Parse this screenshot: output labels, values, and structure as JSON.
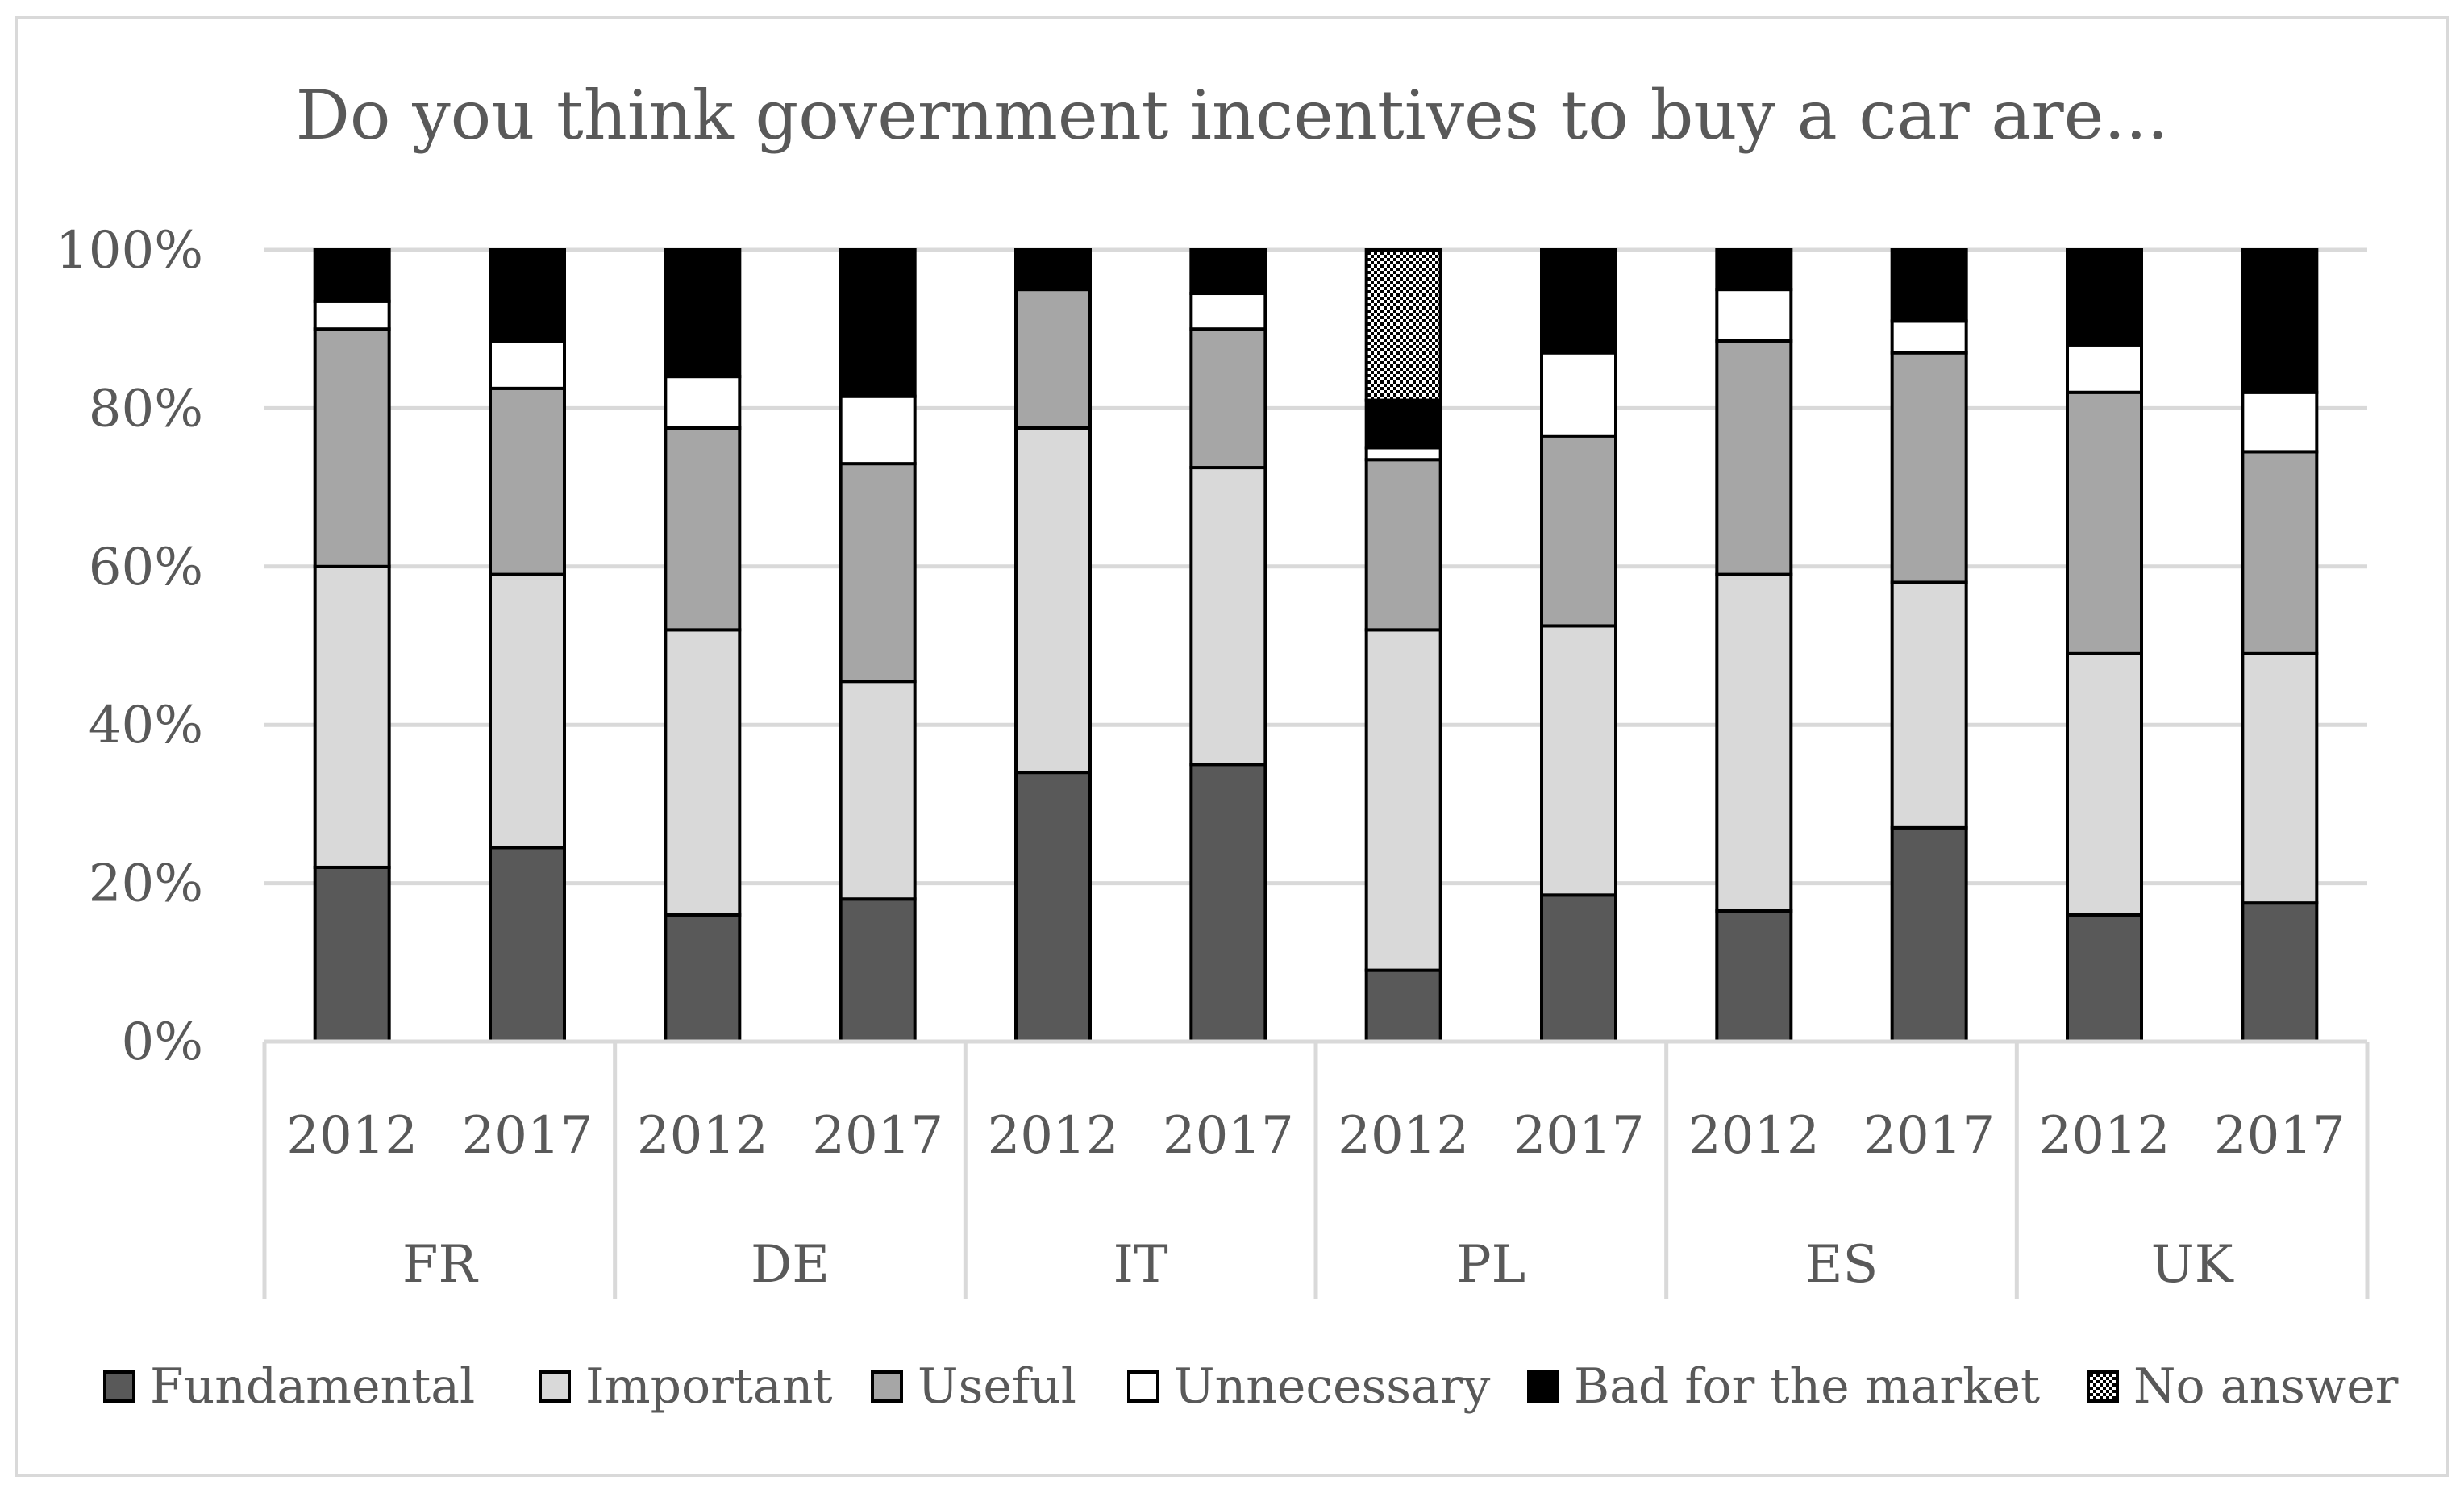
{
  "chart_data": {
    "type": "bar",
    "stacked": true,
    "percent": true,
    "title": "Do you think government incentives to buy a car are...",
    "xlabel": "",
    "ylabel": "",
    "ylim": [
      0,
      100
    ],
    "yticks": [
      "0%",
      "20%",
      "40%",
      "60%",
      "80%",
      "100%"
    ],
    "grid": true,
    "legend_position": "bottom",
    "groups": [
      "FR",
      "DE",
      "IT",
      "PL",
      "ES",
      "UK"
    ],
    "years": [
      "2012",
      "2017"
    ],
    "categories": [
      "FR 2012",
      "FR 2017",
      "DE 2012",
      "DE 2017",
      "IT 2012",
      "IT 2017",
      "PL 2012",
      "PL 2017",
      "ES 2012",
      "ES 2017",
      "UK 2012",
      "UK 2017"
    ],
    "series": [
      {
        "name": "Fundamental",
        "color": "#595959",
        "pattern": "solid",
        "values": [
          22,
          24.5,
          16,
          18,
          34,
          35,
          9,
          18.5,
          16.5,
          27,
          16,
          17.5
        ]
      },
      {
        "name": "Important",
        "color": "#d9d9d9",
        "pattern": "solid",
        "values": [
          38,
          34.5,
          36,
          27.5,
          43.5,
          37.5,
          43,
          34,
          42.5,
          31,
          33,
          31.5
        ]
      },
      {
        "name": "Useful",
        "color": "#a6a6a6",
        "pattern": "solid",
        "values": [
          30,
          23.5,
          25.5,
          27.5,
          17.5,
          17.5,
          21.5,
          24,
          29.5,
          29,
          33,
          25.5
        ]
      },
      {
        "name": "Unnecessary",
        "color": "#ffffff",
        "pattern": "solid",
        "values": [
          3.5,
          6,
          6.5,
          8.5,
          0,
          4.5,
          1.5,
          10.5,
          6.5,
          4,
          6,
          7.5
        ]
      },
      {
        "name": "Bad for the market",
        "color": "#000000",
        "pattern": "solid",
        "values": [
          6.5,
          11.5,
          16,
          18.5,
          5,
          5.5,
          6,
          13,
          5,
          9,
          12,
          18
        ]
      },
      {
        "name": "No answer",
        "color": "#000000",
        "pattern": "dots",
        "values": [
          0,
          0,
          0,
          0,
          0,
          0,
          19,
          0,
          0,
          0,
          0,
          0
        ]
      }
    ]
  }
}
